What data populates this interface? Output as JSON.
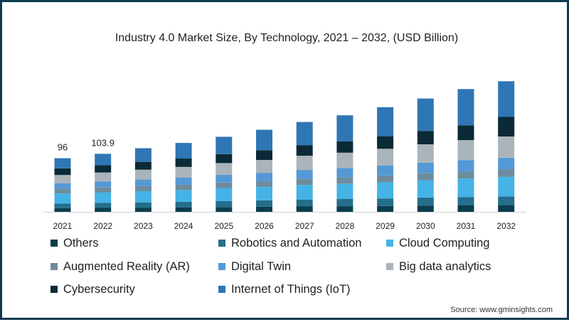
{
  "title": "Industry 4.0 Market Size, By Technology, 2021 – 2032, (USD Billion)",
  "source": "Source: www.gminsights.com",
  "chart_data": {
    "type": "bar",
    "stacked": true,
    "title": "Industry 4.0 Market Size, By Technology, 2021 – 2032, (USD Billion)",
    "xlabel": "",
    "ylabel": "",
    "categories": [
      "2021",
      "2022",
      "2023",
      "2024",
      "2025",
      "2026",
      "2027",
      "2028",
      "2029",
      "2030",
      "2031",
      "2032"
    ],
    "totals": [
      96,
      103.9,
      114,
      123.5,
      134.5,
      147,
      161,
      173,
      187.5,
      203,
      220,
      234
    ],
    "data_labels": [
      {
        "category": "2021",
        "text": "96"
      },
      {
        "category": "2022",
        "text": "103.9"
      }
    ],
    "series": [
      {
        "name": "Others",
        "color": "#0b3d4e",
        "values": [
          6.5,
          7,
          7.5,
          8,
          8.5,
          9,
          9.5,
          10,
          10.5,
          11,
          11.5,
          12
        ]
      },
      {
        "name": "Robotics and Automation",
        "color": "#256e8c",
        "values": [
          8.5,
          9,
          9.5,
          10,
          11,
          11.5,
          12.5,
          13,
          13.5,
          14.5,
          15,
          15.5
        ]
      },
      {
        "name": "Cloud Computing",
        "color": "#45b3e6",
        "values": [
          18,
          19,
          20,
          21,
          23,
          24,
          26,
          27,
          29,
          31,
          33,
          35
        ]
      },
      {
        "name": "Augmented Reality (AR)",
        "color": "#6e8c9e",
        "values": [
          8,
          8.5,
          9,
          9.5,
          10,
          10.5,
          11,
          11.5,
          12,
          12.5,
          13,
          13.5
        ]
      },
      {
        "name": "Digital Twin",
        "color": "#5499d6",
        "values": [
          10,
          11,
          12,
          13,
          14,
          15,
          16,
          17,
          18,
          19,
          20,
          21
        ]
      },
      {
        "name": "Big data analytics",
        "color": "#aab4bb",
        "values": [
          15,
          16,
          17.5,
          19,
          21,
          23,
          25.5,
          27.5,
          30,
          33,
          36,
          38
        ]
      },
      {
        "name": "Cybersecurity",
        "color": "#0b2936",
        "values": [
          12,
          13,
          14,
          15,
          16,
          17.5,
          19,
          20.5,
          22,
          24,
          26.5,
          35
        ]
      },
      {
        "name": "Internet of Things (IoT)",
        "color": "#2f76b5",
        "values": [
          18,
          20.4,
          24.5,
          28,
          31,
          36.5,
          41.5,
          46.5,
          52.5,
          58,
          65,
          64
        ]
      }
    ],
    "ylim": [
      0,
      240
    ],
    "grid": false,
    "legend_position": "bottom"
  }
}
